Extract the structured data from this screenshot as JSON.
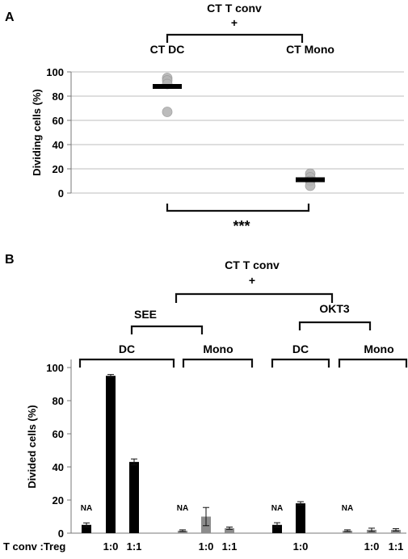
{
  "chart_data": [
    {
      "panel": "A",
      "type": "scatter",
      "header_line1": "CT T conv",
      "header_line2": "+",
      "categories": [
        "CT DC",
        "CT Mono"
      ],
      "ylabel": "Dividing cells (%)",
      "ylim": [
        0,
        100
      ],
      "yticks": [
        0,
        20,
        40,
        60,
        80,
        100
      ],
      "points": [
        {
          "category": "CT DC",
          "values": [
            95,
            93,
            90,
            67
          ]
        },
        {
          "category": "CT Mono",
          "values": [
            16,
            13,
            10,
            6
          ]
        }
      ],
      "means": [
        88,
        11
      ],
      "significance": "***",
      "colors": {
        "point": "#b5b5b5",
        "mean": "#000000",
        "grid": "#bdbdbd"
      }
    },
    {
      "panel": "B",
      "type": "bar",
      "header_line1": "CT  T conv",
      "header_line2": "+",
      "stimuli": [
        "SEE",
        "OKT3"
      ],
      "cell_groups": [
        "DC",
        "Mono",
        "DC",
        "Mono"
      ],
      "ylabel": "Divided cells (%)",
      "ylim": [
        0,
        100
      ],
      "yticks": [
        0,
        20,
        40,
        60,
        80,
        100
      ],
      "row_label": "T conv :Treg",
      "bars": [
        {
          "group": "SEE DC",
          "ratio": "",
          "value": 5,
          "error": 1.2,
          "color": "#000000",
          "annotation": "NA"
        },
        {
          "group": "SEE DC",
          "ratio": "1:0",
          "value": 95,
          "error": 0.8,
          "color": "#000000",
          "annotation": ""
        },
        {
          "group": "SEE DC",
          "ratio": "1:1",
          "value": 43,
          "error": 1.8,
          "color": "#000000",
          "annotation": ""
        },
        {
          "group": "SEE Mono",
          "ratio": "",
          "value": 1.5,
          "error": 0.5,
          "color": "#8c8c8c",
          "annotation": "NA"
        },
        {
          "group": "SEE Mono",
          "ratio": "1:0",
          "value": 10,
          "error": 5.5,
          "color": "#8c8c8c",
          "annotation": ""
        },
        {
          "group": "SEE Mono",
          "ratio": "1:1",
          "value": 3,
          "error": 0.7,
          "color": "#8c8c8c",
          "annotation": ""
        },
        {
          "group": "OKT3 DC",
          "ratio": "",
          "value": 5,
          "error": 1.3,
          "color": "#000000",
          "annotation": "NA"
        },
        {
          "group": "OKT3 DC",
          "ratio": "1:0",
          "value": 18,
          "error": 1.0,
          "color": "#000000",
          "annotation": ""
        },
        {
          "group": "OKT3 Mono",
          "ratio": "",
          "value": 1.5,
          "error": 0.5,
          "color": "#8c8c8c",
          "annotation": "NA"
        },
        {
          "group": "OKT3 Mono",
          "ratio": "1:0",
          "value": 2,
          "error": 1.0,
          "color": "#8c8c8c",
          "annotation": ""
        },
        {
          "group": "OKT3 Mono",
          "ratio": "1:1",
          "value": 2,
          "error": 0.7,
          "color": "#8c8c8c",
          "annotation": ""
        }
      ]
    }
  ],
  "panel_labels": [
    "A",
    "B"
  ]
}
